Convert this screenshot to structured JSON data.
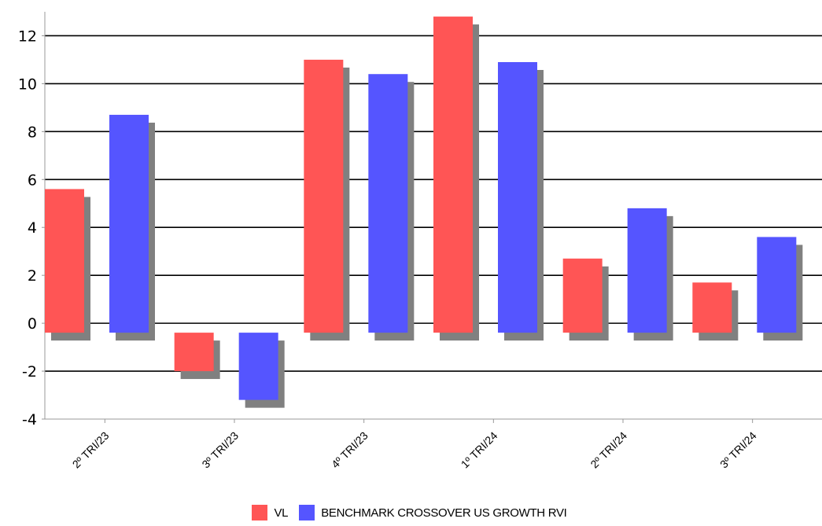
{
  "chart_data": {
    "type": "bar",
    "categories": [
      "2º TRI/23",
      "3º TRI/23",
      "4º TRI/23",
      "1º TRI/24",
      "2º TRI/24",
      "3º TRI/24"
    ],
    "series": [
      {
        "name": "VL",
        "values": [
          5.6,
          -2.0,
          11.0,
          12.8,
          2.7,
          1.7
        ]
      },
      {
        "name": "BENCHMARK CROSSOVER US GROWTH RVI",
        "values": [
          8.7,
          -3.2,
          10.4,
          10.9,
          4.8,
          3.6
        ]
      }
    ],
    "ylim": [
      -4,
      13
    ],
    "yticks": [
      -4,
      -2,
      0,
      2,
      4,
      6,
      8,
      10,
      12
    ],
    "grid": true,
    "legend_position": "bottom",
    "colors": {
      "VL": "#ff5555",
      "BENCHMARK CROSSOVER US GROWTH RVI": "#5555ff",
      "shadow": "#808080",
      "grid": "#000000"
    }
  },
  "legend": {
    "items": [
      {
        "label": "VL",
        "color": "#ff5555"
      },
      {
        "label": "BENCHMARK CROSSOVER US GROWTH RVI",
        "color": "#5555ff"
      }
    ]
  }
}
